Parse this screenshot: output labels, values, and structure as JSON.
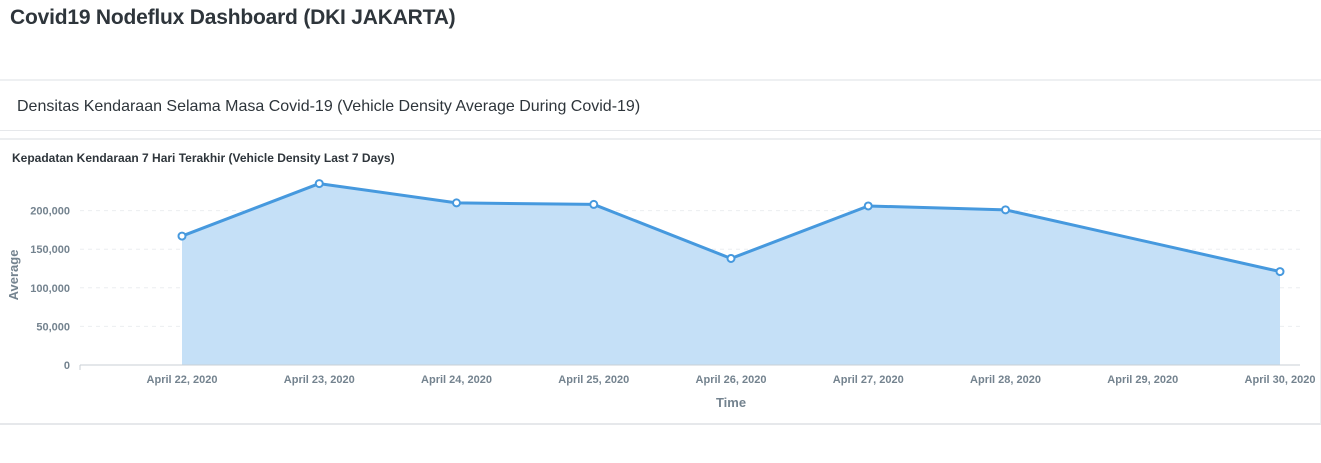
{
  "header": {
    "title": "Covid19 Nodeflux Dashboard (DKI JAKARTA)"
  },
  "section": {
    "heading": "Densitas Kendaraan Selama Masa Covid-19 (Vehicle Density Average During Covid-19)"
  },
  "colors": {
    "line": "#4699de",
    "area": "#c5e0f7",
    "grid": "#eceef0",
    "axis_text": "#74838f"
  },
  "chart_data": {
    "type": "area",
    "title": "Kepadatan Kendaraan 7 Hari Terakhir (Vehicle Density Last 7 Days)",
    "xlabel": "Time",
    "ylabel": "Average",
    "x": [
      "April 22, 2020",
      "April 23, 2020",
      "April 24, 2020",
      "April 25, 2020",
      "April 26, 2020",
      "April 27, 2020",
      "April 28, 2020",
      "April 30, 2020"
    ],
    "x_ticks": [
      "April 22, 2020",
      "April 23, 2020",
      "April 24, 2020",
      "April 25, 2020",
      "April 26, 2020",
      "April 27, 2020",
      "April 28, 2020",
      "April 29, 2020",
      "April 30, 2020"
    ],
    "values": [
      167000,
      235000,
      210000,
      208000,
      138000,
      206000,
      201000,
      121000
    ],
    "y_ticks": [
      "0",
      "50,000",
      "100,000",
      "150,000",
      "200,000"
    ],
    "y_tick_values": [
      0,
      50000,
      100000,
      150000,
      200000
    ],
    "ylim": [
      0,
      250000
    ],
    "grid": true,
    "legend": "none"
  }
}
